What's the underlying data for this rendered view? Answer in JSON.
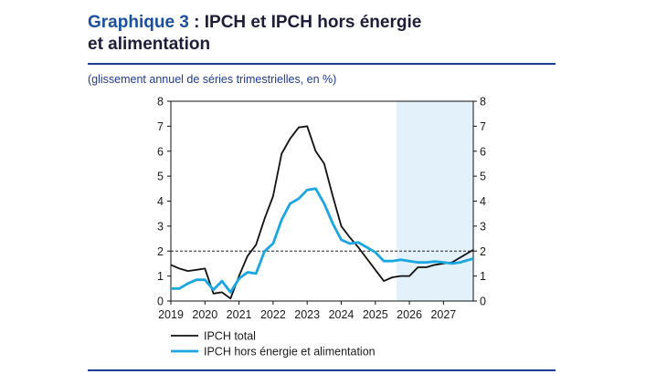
{
  "header": {
    "figure_label": "Graphique 3",
    "title_rest": " : IPCH et IPCH hors énergie",
    "title_line2": "et alimentation",
    "subtitle": "(glissement annuel de séries trimestrielles, en %)"
  },
  "chart_data": {
    "type": "line",
    "title": "Graphique 3 : IPCH et IPCH hors énergie et alimentation",
    "subtitle": "(glissement annuel de séries trimestrielles, en %)",
    "xlabel": "",
    "ylabel": "",
    "xlim": [
      2019.0,
      2027.875
    ],
    "ylim": [
      0,
      8
    ],
    "x_ticks": [
      "2019",
      "2020",
      "2021",
      "2022",
      "2023",
      "2024",
      "2025",
      "2026",
      "2027"
    ],
    "y_ticks": [
      "0",
      "1",
      "2",
      "3",
      "4",
      "5",
      "6",
      "7",
      "8"
    ],
    "y_ticks_right": [
      "0",
      "1",
      "2",
      "3",
      "4",
      "5",
      "6",
      "7",
      "8"
    ],
    "reference_line": {
      "y": 2,
      "style": "dashed"
    },
    "projection_shading": {
      "from": 2025.625,
      "to": 2027.875,
      "color": "#e3f1fa"
    },
    "legend_position": "bottom-left",
    "x": [
      2019.0,
      2019.25,
      2019.5,
      2019.75,
      2020.0,
      2020.25,
      2020.5,
      2020.75,
      2021.0,
      2021.25,
      2021.5,
      2021.75,
      2022.0,
      2022.25,
      2022.5,
      2022.75,
      2023.0,
      2023.25,
      2023.5,
      2023.75,
      2024.0,
      2024.25,
      2024.5,
      2024.75,
      2025.0,
      2025.25,
      2025.5,
      2025.75,
      2026.0,
      2026.25,
      2026.5,
      2026.75,
      2027.0,
      2027.25,
      2027.5,
      2027.75,
      2027.875
    ],
    "series": [
      {
        "name": "IPCH total",
        "color": "#111111",
        "values": [
          1.45,
          1.3,
          1.2,
          1.25,
          1.3,
          0.3,
          0.35,
          0.1,
          1.0,
          1.8,
          2.25,
          3.3,
          4.2,
          5.9,
          6.5,
          6.95,
          7.0,
          6.0,
          5.5,
          4.2,
          3.0,
          2.55,
          2.15,
          1.7,
          1.25,
          0.8,
          0.95,
          1.0,
          1.0,
          1.35,
          1.35,
          1.45,
          1.5,
          1.55,
          1.75,
          1.95,
          2.05
        ]
      },
      {
        "name": "IPCH hors énergie et alimentation",
        "color": "#1aa6e0",
        "values": [
          0.5,
          0.5,
          0.7,
          0.85,
          0.85,
          0.45,
          0.8,
          0.35,
          0.9,
          1.15,
          1.1,
          2.0,
          2.3,
          3.25,
          3.9,
          4.1,
          4.45,
          4.5,
          3.9,
          3.1,
          2.45,
          2.3,
          2.35,
          2.15,
          1.95,
          1.6,
          1.6,
          1.65,
          1.6,
          1.55,
          1.55,
          1.58,
          1.55,
          1.5,
          1.55,
          1.65,
          1.7
        ]
      }
    ]
  }
}
